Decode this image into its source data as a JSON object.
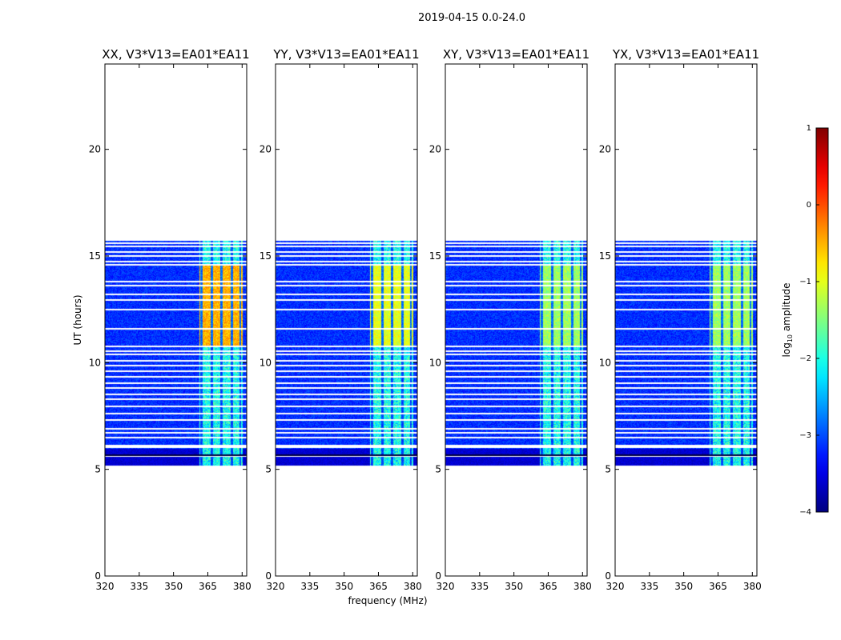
{
  "figure": {
    "suptitle": "2019-04-15 0.0-24.0"
  },
  "chart_data": {
    "type": "heatmap",
    "shared": {
      "xlabel": "frequency (MHz)",
      "ylabel": "UT (hours)",
      "xlim": [
        320,
        382
      ],
      "ylim": [
        0,
        24
      ],
      "xticks": [
        "320",
        "335",
        "350",
        "365",
        "380"
      ],
      "xtick_values": [
        320,
        335,
        350,
        365,
        380
      ],
      "yticks": [
        "0",
        "5",
        "10",
        "15",
        "20"
      ],
      "ytick_values": [
        0,
        5,
        10,
        15,
        20
      ],
      "data_time_range": [
        5.2,
        15.7
      ],
      "dark_band": [
        5.2,
        6.0
      ],
      "rfi_block": {
        "freq": [
          361,
          380
        ],
        "time": [
          5.2,
          15.7
        ],
        "strong_time": [
          10.8,
          14.6
        ]
      },
      "gaps_hours": [
        5.62,
        6.05,
        6.12,
        6.5,
        6.7,
        6.9,
        7.3,
        7.6,
        7.95,
        8.3,
        8.5,
        8.8,
        9.05,
        9.35,
        9.6,
        9.85,
        10.1,
        10.4,
        10.55,
        10.75,
        11.6,
        12.5,
        12.95,
        13.2,
        13.6,
        13.8,
        14.6,
        14.75,
        15.0,
        15.2,
        15.45,
        15.6
      ]
    },
    "panels": [
      {
        "title": "XX, V3*V13=EA01*EA11",
        "rfi_level": 0.72
      },
      {
        "title": "YY, V3*V13=EA01*EA11",
        "rfi_level": 0.62
      },
      {
        "title": "XY, V3*V13=EA01*EA11",
        "rfi_level": 0.55
      },
      {
        "title": "YX, V3*V13=EA01*EA11",
        "rfi_level": 0.55
      }
    ],
    "colorbar": {
      "label": "log10 amplitude",
      "label_base": "log",
      "label_sub": "10",
      "label_rest": " amplitude",
      "range": [
        -4,
        1
      ],
      "ticks": [
        "1",
        "0",
        "−1",
        "−2",
        "−3",
        "−4"
      ],
      "tick_values": [
        1,
        0,
        -1,
        -2,
        -3,
        -4
      ],
      "colormap": "jet"
    }
  }
}
